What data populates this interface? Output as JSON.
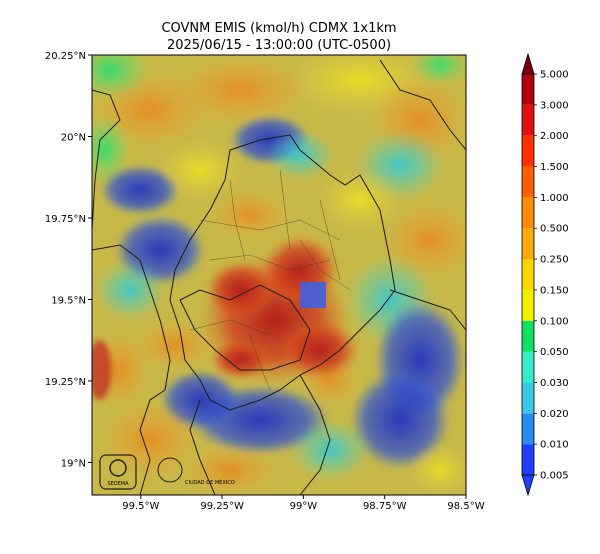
{
  "title_line1": "COVNM EMIS (kmol/h) CDMX 1x1km",
  "title_line2": "2025/06/15 - 13:00:00 (UTC-0500)",
  "map": {
    "y_ticks": [
      {
        "value": 20.25,
        "label": "20.25°N"
      },
      {
        "value": 20.0,
        "label": "20°N"
      },
      {
        "value": 19.75,
        "label": "19.75°N"
      },
      {
        "value": 19.5,
        "label": "19.5°N"
      },
      {
        "value": 19.25,
        "label": "19.25°N"
      },
      {
        "value": 19.0,
        "label": "19°N"
      }
    ],
    "x_ticks": [
      {
        "value": -99.5,
        "label": "99.5°W"
      },
      {
        "value": -99.25,
        "label": "99.25°W"
      },
      {
        "value": -99.0,
        "label": "99°W"
      },
      {
        "value": -98.75,
        "label": "98.75°W"
      },
      {
        "value": -98.5,
        "label": "98.5°W"
      }
    ],
    "lon_range": [
      -99.65,
      -98.5
    ],
    "lat_range": [
      18.9,
      20.25
    ]
  },
  "colorbar": {
    "levels": [
      "0.005",
      "0.010",
      "0.020",
      "0.030",
      "0.050",
      "0.100",
      "0.150",
      "0.250",
      "0.500",
      "1.000",
      "1.500",
      "2.000",
      "3.000",
      "5.000"
    ],
    "colors": [
      "#1f3fff",
      "#2a8cf0",
      "#3ec8e8",
      "#33f0c8",
      "#10e060",
      "#f2f200",
      "#ffd400",
      "#ffaa00",
      "#ff8a00",
      "#ff6000",
      "#ff3000",
      "#e01010",
      "#b00010",
      "#7a0010"
    ]
  },
  "logos": {
    "logo1_text": "SEDEMA",
    "logo2_text": "CIUDAD DE MÉXICO"
  }
}
